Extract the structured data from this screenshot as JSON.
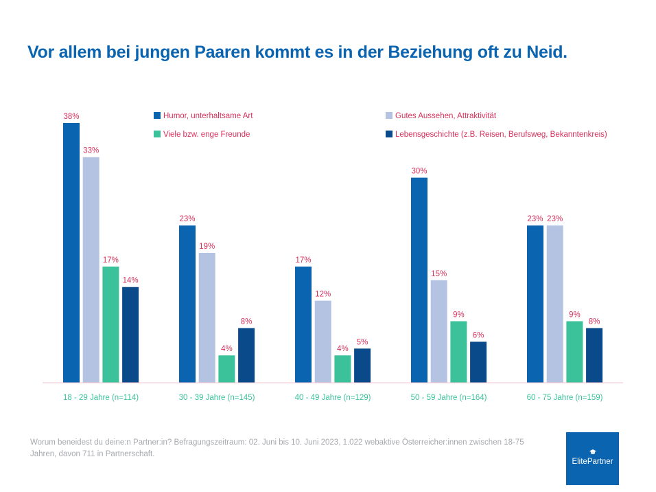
{
  "title": "Vor allem bei jungen Paaren kommt es in der Beziehung oft zu Neid.",
  "footnote": "Worum beneidest du deine:n Partner:in? Befragungszeitraum: 02. Juni bis 10. Juni 2023, 1.022 webaktive Österreicher:innen zwischen 18-75 Jahren, davon 711 in Partnerschaft.",
  "logo": {
    "text": "ElitePartner",
    "icon": "graduation-cap-icon"
  },
  "colors": {
    "series": [
      "#0a64b0",
      "#b5c3e3",
      "#3cc29a",
      "#0a4a8a"
    ],
    "data_label": "#d8315b",
    "category_label": "#3cc29a",
    "legend_text": "#d8315b",
    "baseline": "#f2c4cf"
  },
  "chart_data": {
    "type": "bar",
    "categories": [
      "18 - 29 Jahre (n=114)",
      "30 - 39 Jahre (n=145)",
      "40 - 49 Jahre (n=129)",
      "50 - 59 Jahre (n=164)",
      "60 - 75 Jahre (n=159)"
    ],
    "series": [
      {
        "name": "Humor, unterhaltsame Art",
        "values": [
          38,
          23,
          17,
          30,
          23
        ]
      },
      {
        "name": "Gutes Aussehen, Attraktivität",
        "values": [
          33,
          19,
          12,
          15,
          23
        ]
      },
      {
        "name": "Viele bzw. enge Freunde",
        "values": [
          17,
          4,
          4,
          9,
          9
        ]
      },
      {
        "name": "Lebensgeschichte (z.B. Reisen, Berufsweg, Bekanntenkreis)",
        "values": [
          14,
          8,
          5,
          6,
          8
        ]
      }
    ],
    "value_suffix": "%",
    "legend_position": "top",
    "grid": false
  }
}
